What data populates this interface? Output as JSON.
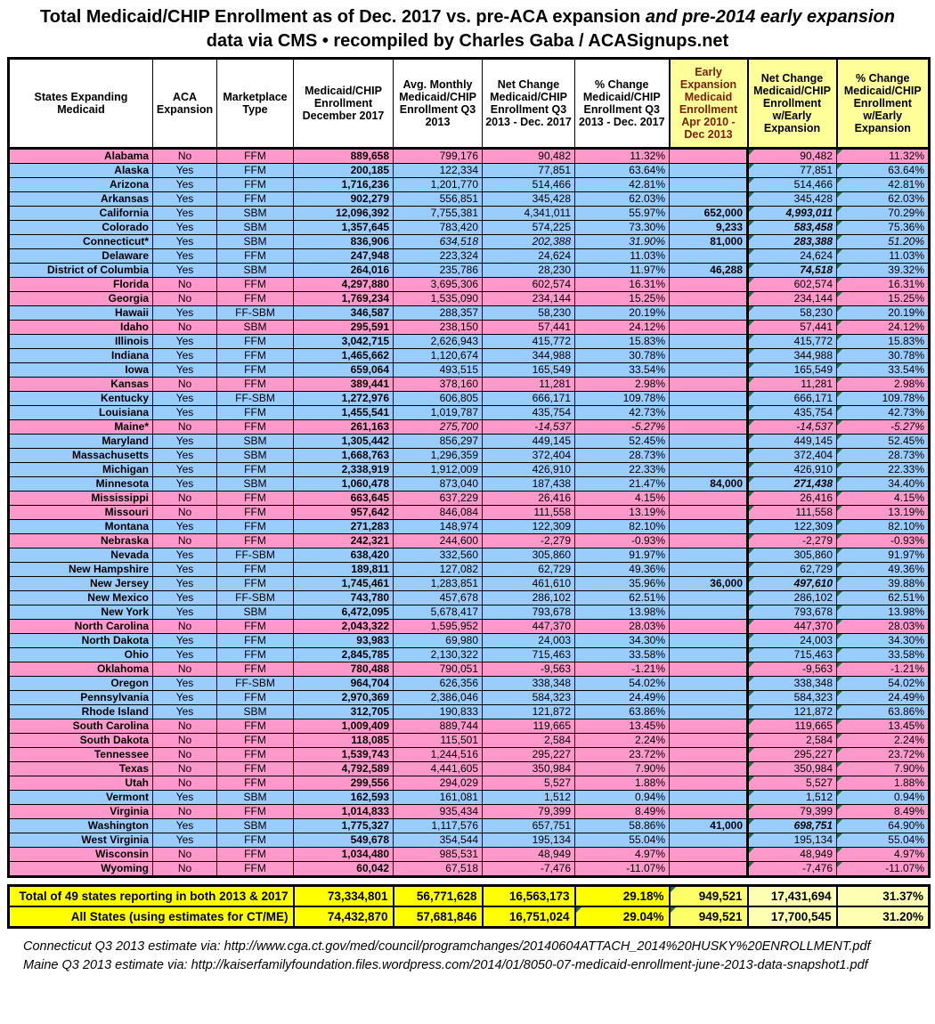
{
  "chart_data": {
    "type": "table",
    "title": "Total Medicaid/CHIP Enrollment as of Dec. 2017 vs. pre-ACA expansion ",
    "title_italic": "and pre-2014 early expansion",
    "subtitle": "data via CMS  •  recompiled by Charles Gaba / ACASignups.net",
    "columns": [
      "States Expanding Medicaid",
      "ACA Expansion",
      "Marketplace Type",
      "Medicaid/CHIP Enrollment December 2017",
      "Avg. Monthly Medicaid/CHIP Enrollment Q3 2013",
      "Net Change Medicaid/CHIP Enrollment Q3 2013 - Dec. 2017",
      "% Change Medicaid/CHIP Enrollment Q3 2013 - Dec. 2017",
      "Early Expansion Medicaid Enrollment Apr 2010 - Dec 2013",
      "Net Change Medicaid/CHIP Enrollment w/Early Expansion",
      "% Change Medicaid/CHIP Enrollment w/Early Expansion"
    ],
    "row_colors": {
      "expanded_yes": "#99CCFF",
      "expanded_no": "#FF99CC"
    },
    "highlight_colors": {
      "header_yellow": "#FFFF99",
      "totals_bright_yellow": "#FFFF00",
      "totals_mid_yellow": "#FFFF66",
      "totals_pale_yellow": "#FFFFB3",
      "early_header_text": "#7B2000",
      "comment_marker_green": "#1D6F42"
    },
    "rows": [
      {
        "state": "Alabama",
        "aca": "No",
        "mkt": "FFM",
        "dec": "889,658",
        "q3": "799,176",
        "net": "90,482",
        "pct": "11.32%",
        "early": "",
        "netE": "90,482",
        "pctE": "11.32%"
      },
      {
        "state": "Alaska",
        "aca": "Yes",
        "mkt": "FFM",
        "dec": "200,185",
        "q3": "122,334",
        "net": "77,851",
        "pct": "63.64%",
        "early": "",
        "netE": "77,851",
        "pctE": "63.64%"
      },
      {
        "state": "Arizona",
        "aca": "Yes",
        "mkt": "FFM",
        "dec": "1,716,236",
        "q3": "1,201,770",
        "net": "514,466",
        "pct": "42.81%",
        "early": "",
        "netE": "514,466",
        "pctE": "42.81%"
      },
      {
        "state": "Arkansas",
        "aca": "Yes",
        "mkt": "FFM",
        "dec": "902,279",
        "q3": "556,851",
        "net": "345,428",
        "pct": "62.03%",
        "early": "",
        "netE": "345,428",
        "pctE": "62.03%"
      },
      {
        "state": "California",
        "aca": "Yes",
        "mkt": "SBM",
        "dec": "12,096,392",
        "q3": "7,755,381",
        "net": "4,341,011",
        "pct": "55.97%",
        "early": "652,000",
        "netE": "4,993,011",
        "pctE": "70.29%"
      },
      {
        "state": "Colorado",
        "aca": "Yes",
        "mkt": "SBM",
        "dec": "1,357,645",
        "q3": "783,420",
        "net": "574,225",
        "pct": "73.30%",
        "early": "9,233",
        "netE": "583,458",
        "pctE": "75.36%"
      },
      {
        "state": "Connecticut*",
        "aca": "Yes",
        "mkt": "SBM",
        "dec": "836,906",
        "q3": "634,518",
        "net": "202,388",
        "pct": "31.90%",
        "early": "81,000",
        "netE": "283,388",
        "pctE": "51.20%",
        "est": true
      },
      {
        "state": "Delaware",
        "aca": "Yes",
        "mkt": "FFM",
        "dec": "247,948",
        "q3": "223,324",
        "net": "24,624",
        "pct": "11.03%",
        "early": "",
        "netE": "24,624",
        "pctE": "11.03%"
      },
      {
        "state": "District of Columbia",
        "aca": "Yes",
        "mkt": "SBM",
        "dec": "264,016",
        "q3": "235,786",
        "net": "28,230",
        "pct": "11.97%",
        "early": "46,288",
        "netE": "74,518",
        "pctE": "39.32%"
      },
      {
        "state": "Florida",
        "aca": "No",
        "mkt": "FFM",
        "dec": "4,297,880",
        "q3": "3,695,306",
        "net": "602,574",
        "pct": "16.31%",
        "early": "",
        "netE": "602,574",
        "pctE": "16.31%"
      },
      {
        "state": "Georgia",
        "aca": "No",
        "mkt": "FFM",
        "dec": "1,769,234",
        "q3": "1,535,090",
        "net": "234,144",
        "pct": "15.25%",
        "early": "",
        "netE": "234,144",
        "pctE": "15.25%"
      },
      {
        "state": "Hawaii",
        "aca": "Yes",
        "mkt": "FF-SBM",
        "dec": "346,587",
        "q3": "288,357",
        "net": "58,230",
        "pct": "20.19%",
        "early": "",
        "netE": "58,230",
        "pctE": "20.19%"
      },
      {
        "state": "Idaho",
        "aca": "No",
        "mkt": "SBM",
        "dec": "295,591",
        "q3": "238,150",
        "net": "57,441",
        "pct": "24.12%",
        "early": "",
        "netE": "57,441",
        "pctE": "24.12%"
      },
      {
        "state": "Illinois",
        "aca": "Yes",
        "mkt": "FFM",
        "dec": "3,042,715",
        "q3": "2,626,943",
        "net": "415,772",
        "pct": "15.83%",
        "early": "",
        "netE": "415,772",
        "pctE": "15.83%"
      },
      {
        "state": "Indiana",
        "aca": "Yes",
        "mkt": "FFM",
        "dec": "1,465,662",
        "q3": "1,120,674",
        "net": "344,988",
        "pct": "30.78%",
        "early": "",
        "netE": "344,988",
        "pctE": "30.78%"
      },
      {
        "state": "Iowa",
        "aca": "Yes",
        "mkt": "FFM",
        "dec": "659,064",
        "q3": "493,515",
        "net": "165,549",
        "pct": "33.54%",
        "early": "",
        "netE": "165,549",
        "pctE": "33.54%"
      },
      {
        "state": "Kansas",
        "aca": "No",
        "mkt": "FFM",
        "dec": "389,441",
        "q3": "378,160",
        "net": "11,281",
        "pct": "2.98%",
        "early": "",
        "netE": "11,281",
        "pctE": "2.98%"
      },
      {
        "state": "Kentucky",
        "aca": "Yes",
        "mkt": "FF-SBM",
        "dec": "1,272,976",
        "q3": "606,805",
        "net": "666,171",
        "pct": "109.78%",
        "early": "",
        "netE": "666,171",
        "pctE": "109.78%"
      },
      {
        "state": "Louisiana",
        "aca": "Yes",
        "mkt": "FFM",
        "dec": "1,455,541",
        "q3": "1,019,787",
        "net": "435,754",
        "pct": "42.73%",
        "early": "",
        "netE": "435,754",
        "pctE": "42.73%"
      },
      {
        "state": "Maine*",
        "aca": "No",
        "mkt": "FFM",
        "dec": "261,163",
        "q3": "275,700",
        "net": "-14,537",
        "pct": "-5.27%",
        "early": "",
        "netE": "-14,537",
        "pctE": "-5.27%",
        "est": true
      },
      {
        "state": "Maryland",
        "aca": "Yes",
        "mkt": "SBM",
        "dec": "1,305,442",
        "q3": "856,297",
        "net": "449,145",
        "pct": "52.45%",
        "early": "",
        "netE": "449,145",
        "pctE": "52.45%"
      },
      {
        "state": "Massachusetts",
        "aca": "Yes",
        "mkt": "SBM",
        "dec": "1,668,763",
        "q3": "1,296,359",
        "net": "372,404",
        "pct": "28.73%",
        "early": "",
        "netE": "372,404",
        "pctE": "28.73%"
      },
      {
        "state": "Michigan",
        "aca": "Yes",
        "mkt": "FFM",
        "dec": "2,338,919",
        "q3": "1,912,009",
        "net": "426,910",
        "pct": "22.33%",
        "early": "",
        "netE": "426,910",
        "pctE": "22.33%"
      },
      {
        "state": "Minnesota",
        "aca": "Yes",
        "mkt": "SBM",
        "dec": "1,060,478",
        "q3": "873,040",
        "net": "187,438",
        "pct": "21.47%",
        "early": "84,000",
        "netE": "271,438",
        "pctE": "34.40%"
      },
      {
        "state": "Mississippi",
        "aca": "No",
        "mkt": "FFM",
        "dec": "663,645",
        "q3": "637,229",
        "net": "26,416",
        "pct": "4.15%",
        "early": "",
        "netE": "26,416",
        "pctE": "4.15%"
      },
      {
        "state": "Missouri",
        "aca": "No",
        "mkt": "FFM",
        "dec": "957,642",
        "q3": "846,084",
        "net": "111,558",
        "pct": "13.19%",
        "early": "",
        "netE": "111,558",
        "pctE": "13.19%"
      },
      {
        "state": "Montana",
        "aca": "Yes",
        "mkt": "FFM",
        "dec": "271,283",
        "q3": "148,974",
        "net": "122,309",
        "pct": "82.10%",
        "early": "",
        "netE": "122,309",
        "pctE": "82.10%"
      },
      {
        "state": "Nebraska",
        "aca": "No",
        "mkt": "FFM",
        "dec": "242,321",
        "q3": "244,600",
        "net": "-2,279",
        "pct": "-0.93%",
        "early": "",
        "netE": "-2,279",
        "pctE": "-0.93%"
      },
      {
        "state": "Nevada",
        "aca": "Yes",
        "mkt": "FF-SBM",
        "dec": "638,420",
        "q3": "332,560",
        "net": "305,860",
        "pct": "91.97%",
        "early": "",
        "netE": "305,860",
        "pctE": "91.97%"
      },
      {
        "state": "New Hampshire",
        "aca": "Yes",
        "mkt": "FFM",
        "dec": "189,811",
        "q3": "127,082",
        "net": "62,729",
        "pct": "49.36%",
        "early": "",
        "netE": "62,729",
        "pctE": "49.36%"
      },
      {
        "state": "New Jersey",
        "aca": "Yes",
        "mkt": "FFM",
        "dec": "1,745,461",
        "q3": "1,283,851",
        "net": "461,610",
        "pct": "35.96%",
        "early": "36,000",
        "netE": "497,610",
        "pctE": "39.88%"
      },
      {
        "state": "New Mexico",
        "aca": "Yes",
        "mkt": "FF-SBM",
        "dec": "743,780",
        "q3": "457,678",
        "net": "286,102",
        "pct": "62.51%",
        "early": "",
        "netE": "286,102",
        "pctE": "62.51%"
      },
      {
        "state": "New York",
        "aca": "Yes",
        "mkt": "SBM",
        "dec": "6,472,095",
        "q3": "5,678,417",
        "net": "793,678",
        "pct": "13.98%",
        "early": "",
        "netE": "793,678",
        "pctE": "13.98%"
      },
      {
        "state": "North Carolina",
        "aca": "No",
        "mkt": "FFM",
        "dec": "2,043,322",
        "q3": "1,595,952",
        "net": "447,370",
        "pct": "28.03%",
        "early": "",
        "netE": "447,370",
        "pctE": "28.03%"
      },
      {
        "state": "North Dakota",
        "aca": "Yes",
        "mkt": "FFM",
        "dec": "93,983",
        "q3": "69,980",
        "net": "24,003",
        "pct": "34.30%",
        "early": "",
        "netE": "24,003",
        "pctE": "34.30%"
      },
      {
        "state": "Ohio",
        "aca": "Yes",
        "mkt": "FFM",
        "dec": "2,845,785",
        "q3": "2,130,322",
        "net": "715,463",
        "pct": "33.58%",
        "early": "",
        "netE": "715,463",
        "pctE": "33.58%"
      },
      {
        "state": "Oklahoma",
        "aca": "No",
        "mkt": "FFM",
        "dec": "780,488",
        "q3": "790,051",
        "net": "-9,563",
        "pct": "-1.21%",
        "early": "",
        "netE": "-9,563",
        "pctE": "-1.21%"
      },
      {
        "state": "Oregon",
        "aca": "Yes",
        "mkt": "FF-SBM",
        "dec": "964,704",
        "q3": "626,356",
        "net": "338,348",
        "pct": "54.02%",
        "early": "",
        "netE": "338,348",
        "pctE": "54.02%"
      },
      {
        "state": "Pennsylvania",
        "aca": "Yes",
        "mkt": "FFM",
        "dec": "2,970,369",
        "q3": "2,386,046",
        "net": "584,323",
        "pct": "24.49%",
        "early": "",
        "netE": "584,323",
        "pctE": "24.49%"
      },
      {
        "state": "Rhode Island",
        "aca": "Yes",
        "mkt": "SBM",
        "dec": "312,705",
        "q3": "190,833",
        "net": "121,872",
        "pct": "63.86%",
        "early": "",
        "netE": "121,872",
        "pctE": "63.86%"
      },
      {
        "state": "South Carolina",
        "aca": "No",
        "mkt": "FFM",
        "dec": "1,009,409",
        "q3": "889,744",
        "net": "119,665",
        "pct": "13.45%",
        "early": "",
        "netE": "119,665",
        "pctE": "13.45%"
      },
      {
        "state": "South Dakota",
        "aca": "No",
        "mkt": "FFM",
        "dec": "118,085",
        "q3": "115,501",
        "net": "2,584",
        "pct": "2.24%",
        "early": "",
        "netE": "2,584",
        "pctE": "2.24%"
      },
      {
        "state": "Tennessee",
        "aca": "No",
        "mkt": "FFM",
        "dec": "1,539,743",
        "q3": "1,244,516",
        "net": "295,227",
        "pct": "23.72%",
        "early": "",
        "netE": "295,227",
        "pctE": "23.72%"
      },
      {
        "state": "Texas",
        "aca": "No",
        "mkt": "FFM",
        "dec": "4,792,589",
        "q3": "4,441,605",
        "net": "350,984",
        "pct": "7.90%",
        "early": "",
        "netE": "350,984",
        "pctE": "7.90%"
      },
      {
        "state": "Utah",
        "aca": "No",
        "mkt": "FFM",
        "dec": "299,556",
        "q3": "294,029",
        "net": "5,527",
        "pct": "1.88%",
        "early": "",
        "netE": "5,527",
        "pctE": "1.88%"
      },
      {
        "state": "Vermont",
        "aca": "Yes",
        "mkt": "SBM",
        "dec": "162,593",
        "q3": "161,081",
        "net": "1,512",
        "pct": "0.94%",
        "early": "",
        "netE": "1,512",
        "pctE": "0.94%"
      },
      {
        "state": "Virginia",
        "aca": "No",
        "mkt": "FFM",
        "dec": "1,014,833",
        "q3": "935,434",
        "net": "79,399",
        "pct": "8.49%",
        "early": "",
        "netE": "79,399",
        "pctE": "8.49%"
      },
      {
        "state": "Washington",
        "aca": "Yes",
        "mkt": "SBM",
        "dec": "1,775,327",
        "q3": "1,117,576",
        "net": "657,751",
        "pct": "58.86%",
        "early": "41,000",
        "netE": "698,751",
        "pctE": "64.90%"
      },
      {
        "state": "West Virginia",
        "aca": "Yes",
        "mkt": "FFM",
        "dec": "549,678",
        "q3": "354,544",
        "net": "195,134",
        "pct": "55.04%",
        "early": "",
        "netE": "195,134",
        "pctE": "55.04%"
      },
      {
        "state": "Wisconsin",
        "aca": "No",
        "mkt": "FFM",
        "dec": "1,034,480",
        "q3": "985,531",
        "net": "48,949",
        "pct": "4.97%",
        "early": "",
        "netE": "48,949",
        "pctE": "4.97%"
      },
      {
        "state": "Wyoming",
        "aca": "No",
        "mkt": "FFM",
        "dec": "60,042",
        "q3": "67,518",
        "net": "-7,476",
        "pct": "-11.07%",
        "early": "",
        "netE": "-7,476",
        "pctE": "-11.07%"
      }
    ],
    "totals": [
      {
        "label": "Total of 49 states reporting in both 2013 & 2017",
        "dec": "73,334,801",
        "q3": "56,771,628",
        "net": "16,563,173",
        "pct": "29.18%",
        "early": "949,521",
        "netE": "17,431,694",
        "pctE": "31.37%",
        "wedges": [
          "early"
        ]
      },
      {
        "label": "All States (using estimates for CT/ME)",
        "dec": "74,432,870",
        "q3": "57,681,846",
        "net": "16,751,024",
        "pct": "29.04%",
        "early": "949,521",
        "netE": "17,700,545",
        "pctE": "31.20%",
        "wedges": [
          "pct",
          "early"
        ]
      }
    ],
    "footnotes": [
      "Connecticut Q3 2013 estimate via: http://www.cga.ct.gov/med/council/programchanges/20140604ATTACH_2014%20HUSKY%20ENROLLMENT.pdf",
      "Maine Q3 2013 estimate via: http://kaiserfamilyfoundation.files.wordpress.com/2014/01/8050-07-medicaid-enrollment-june-2013-data-snapshot1.pdf"
    ]
  }
}
